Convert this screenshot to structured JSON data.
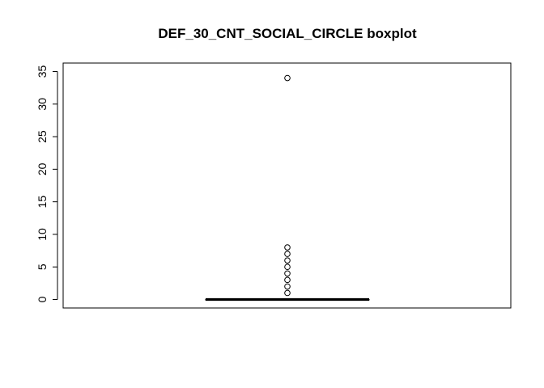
{
  "chart_data": {
    "type": "boxplot",
    "title": "DEF_30_CNT_SOCIAL_CIRCLE boxplot",
    "xlabel": "",
    "ylabel": "",
    "ylim": [
      -1.3,
      36.3
    ],
    "yticks": [
      0,
      5,
      10,
      15,
      20,
      25,
      30,
      35
    ],
    "grid": false,
    "box": {
      "min": 0,
      "q1": 0,
      "median": 0,
      "q3": 0,
      "max": 0
    },
    "outliers": [
      1,
      2,
      3,
      4,
      5,
      6,
      7,
      8,
      34
    ]
  }
}
